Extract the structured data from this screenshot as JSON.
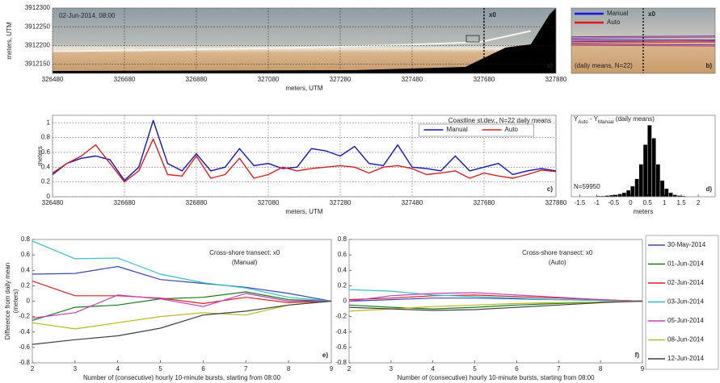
{
  "chart_data": [
    {
      "type": "image",
      "timestamp": "02-Jun-2014, 08:00",
      "panel_label": "a)",
      "xlabel": "meters, UTM",
      "ylabel": "meters, UTM",
      "xlim": [
        326480,
        327880
      ],
      "ylim": [
        3912125,
        3912300
      ],
      "xticks": [
        326480,
        326680,
        326880,
        327080,
        327280,
        327480,
        327680,
        327880
      ],
      "yticks": [
        3912150,
        3912200,
        3912250,
        3912300
      ],
      "grid": true,
      "transect_label": "x0",
      "transect_x": 327680
    },
    {
      "type": "image",
      "panel_label": "b)",
      "transect_label": "x0",
      "note": "(daily means, N=22)",
      "series": [
        {
          "name": "Manual",
          "color": "#1414e6"
        },
        {
          "name": "Auto",
          "color": "#e61414"
        }
      ]
    },
    {
      "type": "line",
      "panel_label": "c)",
      "annotation": "Coastline st.dev., N=22 daily means",
      "xlabel": "meters, UTM",
      "ylabel": "meters",
      "xlim": [
        326480,
        327880
      ],
      "ylim": [
        0,
        1.1
      ],
      "xticks": [
        326480,
        326680,
        326880,
        327080,
        327280,
        327480,
        327680,
        327880
      ],
      "yticks": [
        0,
        0.2,
        0.4,
        0.6,
        0.8,
        1
      ],
      "grid": true,
      "x": [
        326480,
        326520,
        326560,
        326600,
        326640,
        326680,
        326720,
        326760,
        326800,
        326840,
        326880,
        326920,
        326960,
        327000,
        327040,
        327080,
        327120,
        327160,
        327200,
        327240,
        327280,
        327320,
        327360,
        327400,
        327440,
        327480,
        327520,
        327560,
        327600,
        327640,
        327680,
        327720,
        327760,
        327800,
        327840,
        327880
      ],
      "series": [
        {
          "name": "Manual",
          "color": "#1414b4",
          "values": [
            0.3,
            0.45,
            0.52,
            0.55,
            0.5,
            0.22,
            0.4,
            1.03,
            0.45,
            0.35,
            0.58,
            0.35,
            0.4,
            0.65,
            0.42,
            0.45,
            0.38,
            0.4,
            0.65,
            0.62,
            0.55,
            0.68,
            0.45,
            0.42,
            0.7,
            0.4,
            0.38,
            0.35,
            0.55,
            0.35,
            0.4,
            0.45,
            0.3,
            0.35,
            0.38,
            0.35
          ]
        },
        {
          "name": "Auto",
          "color": "#d62020",
          "values": [
            0.32,
            0.45,
            0.55,
            0.7,
            0.45,
            0.2,
            0.35,
            0.78,
            0.3,
            0.28,
            0.55,
            0.25,
            0.3,
            0.52,
            0.25,
            0.3,
            0.4,
            0.35,
            0.38,
            0.4,
            0.42,
            0.4,
            0.32,
            0.4,
            0.42,
            0.38,
            0.3,
            0.32,
            0.35,
            0.25,
            0.32,
            0.28,
            0.25,
            0.3,
            0.36,
            0.34
          ]
        }
      ]
    },
    {
      "type": "histogram",
      "panel_label": "d)",
      "title_parts": [
        "Y",
        "Auto",
        " - Y",
        "Manual",
        " (daily means)"
      ],
      "annotation": "N=59950",
      "xlabel": "meters",
      "xlim": [
        -1.75,
        2.5
      ],
      "ylim": [
        0,
        1
      ],
      "xticks": [
        -1.5,
        -1,
        -0.5,
        0,
        0.5,
        1,
        1.5,
        2
      ],
      "color": "#000000",
      "bins": [
        -1.25,
        -1.125,
        -1,
        -0.875,
        -0.75,
        -0.625,
        -0.5,
        -0.375,
        -0.25,
        -0.125,
        0,
        0.125,
        0.25,
        0.375,
        0.5,
        0.625,
        0.75,
        0.875,
        1,
        1.125,
        1.25,
        1.375,
        1.5,
        1.625,
        1.75,
        1.875,
        2
      ],
      "counts": [
        0.005,
        0.005,
        0.01,
        0.01,
        0.015,
        0.02,
        0.025,
        0.035,
        0.05,
        0.08,
        0.13,
        0.22,
        0.4,
        0.64,
        0.88,
        0.72,
        0.4,
        0.2,
        0.1,
        0.05,
        0.025,
        0.015,
        0.01,
        0.005,
        0.003,
        0.002
      ]
    },
    {
      "type": "line",
      "panel_label": "e)",
      "annotation": [
        "Cross-shore transect: x0",
        "(Manual)"
      ],
      "xlabel": "Number of (consecutive) hourly 10-minute bursts, starting from 08:00",
      "ylabel": [
        "Difference from daily mean",
        "(meters)"
      ],
      "xlim": [
        2,
        9
      ],
      "ylim": [
        -0.8,
        0.8
      ],
      "xticks": [
        2,
        3,
        4,
        5,
        6,
        7,
        8,
        9
      ],
      "yticks": [
        -0.8,
        -0.6,
        -0.4,
        -0.2,
        0,
        0.2,
        0.4,
        0.6,
        0.8
      ],
      "x": [
        2,
        3,
        4,
        5,
        6,
        7,
        8,
        9
      ],
      "series": [
        {
          "name": "30-May-2014",
          "color": "#3848b0",
          "values": [
            0.35,
            0.36,
            0.45,
            0.28,
            0.23,
            0.18,
            0.1,
            0
          ]
        },
        {
          "name": "01-Jun-2014",
          "color": "#1a7a1a",
          "values": [
            -0.25,
            -0.08,
            -0.05,
            0.03,
            0.05,
            0.12,
            0.02,
            0
          ]
        },
        {
          "name": "02-Jun-2014",
          "color": "#d62020",
          "values": [
            0.26,
            0.07,
            0.07,
            0.04,
            -0.03,
            0.05,
            -0.02,
            0
          ]
        },
        {
          "name": "03-Jun-2014",
          "color": "#30c0c0",
          "values": [
            0.78,
            0.55,
            0.56,
            0.35,
            0.24,
            0.17,
            0.05,
            0
          ]
        },
        {
          "name": "05-Jun-2014",
          "color": "#c040c0",
          "values": [
            -0.22,
            -0.15,
            0.08,
            0.03,
            -0.07,
            0.1,
            0.0,
            0
          ]
        },
        {
          "name": "08-Jun-2014",
          "color": "#b8b820",
          "values": [
            -0.28,
            -0.36,
            -0.28,
            -0.2,
            -0.15,
            -0.18,
            -0.05,
            0
          ]
        },
        {
          "name": "12-Jun-2014",
          "color": "#404040",
          "values": [
            -0.56,
            -0.5,
            -0.45,
            -0.35,
            -0.18,
            -0.13,
            -0.05,
            0
          ]
        }
      ]
    },
    {
      "type": "line",
      "panel_label": "f)",
      "annotation": [
        "Cross-shore transect: x0",
        "(Auto)"
      ],
      "xlabel": "Number of (consecutive) hourly 10-minute bursts, starting from 08:00",
      "xlim": [
        2,
        9
      ],
      "ylim": [
        -0.8,
        0.8
      ],
      "xticks": [
        2,
        3,
        4,
        5,
        6,
        7,
        8,
        9
      ],
      "yticks": [
        -0.8,
        -0.6,
        -0.4,
        -0.2,
        0,
        0.2,
        0.4,
        0.6,
        0.8
      ],
      "x": [
        2,
        3,
        4,
        5,
        6,
        7,
        8,
        9
      ],
      "series": [
        {
          "color": "#3848b0",
          "values": [
            0.0,
            0.02,
            0.04,
            0.04,
            0.03,
            0.02,
            0.01,
            0
          ]
        },
        {
          "color": "#1a7a1a",
          "values": [
            -0.05,
            -0.08,
            -0.1,
            -0.08,
            -0.05,
            -0.03,
            -0.01,
            0
          ]
        },
        {
          "color": "#d62020",
          "values": [
            0.02,
            0.04,
            0.07,
            0.08,
            0.06,
            0.04,
            0.02,
            0
          ]
        },
        {
          "color": "#30c0c0",
          "values": [
            0.15,
            0.13,
            0.08,
            0.06,
            0.04,
            0.02,
            0.01,
            0
          ]
        },
        {
          "color": "#c040c0",
          "values": [
            0.0,
            0.07,
            0.1,
            0.11,
            0.08,
            0.05,
            0.02,
            0
          ]
        },
        {
          "color": "#b8b820",
          "values": [
            -0.13,
            -0.1,
            -0.07,
            -0.05,
            -0.03,
            -0.02,
            -0.01,
            0
          ]
        },
        {
          "color": "#404040",
          "values": [
            -0.08,
            -0.1,
            -0.12,
            -0.11,
            -0.08,
            -0.05,
            -0.02,
            0
          ]
        }
      ]
    }
  ]
}
